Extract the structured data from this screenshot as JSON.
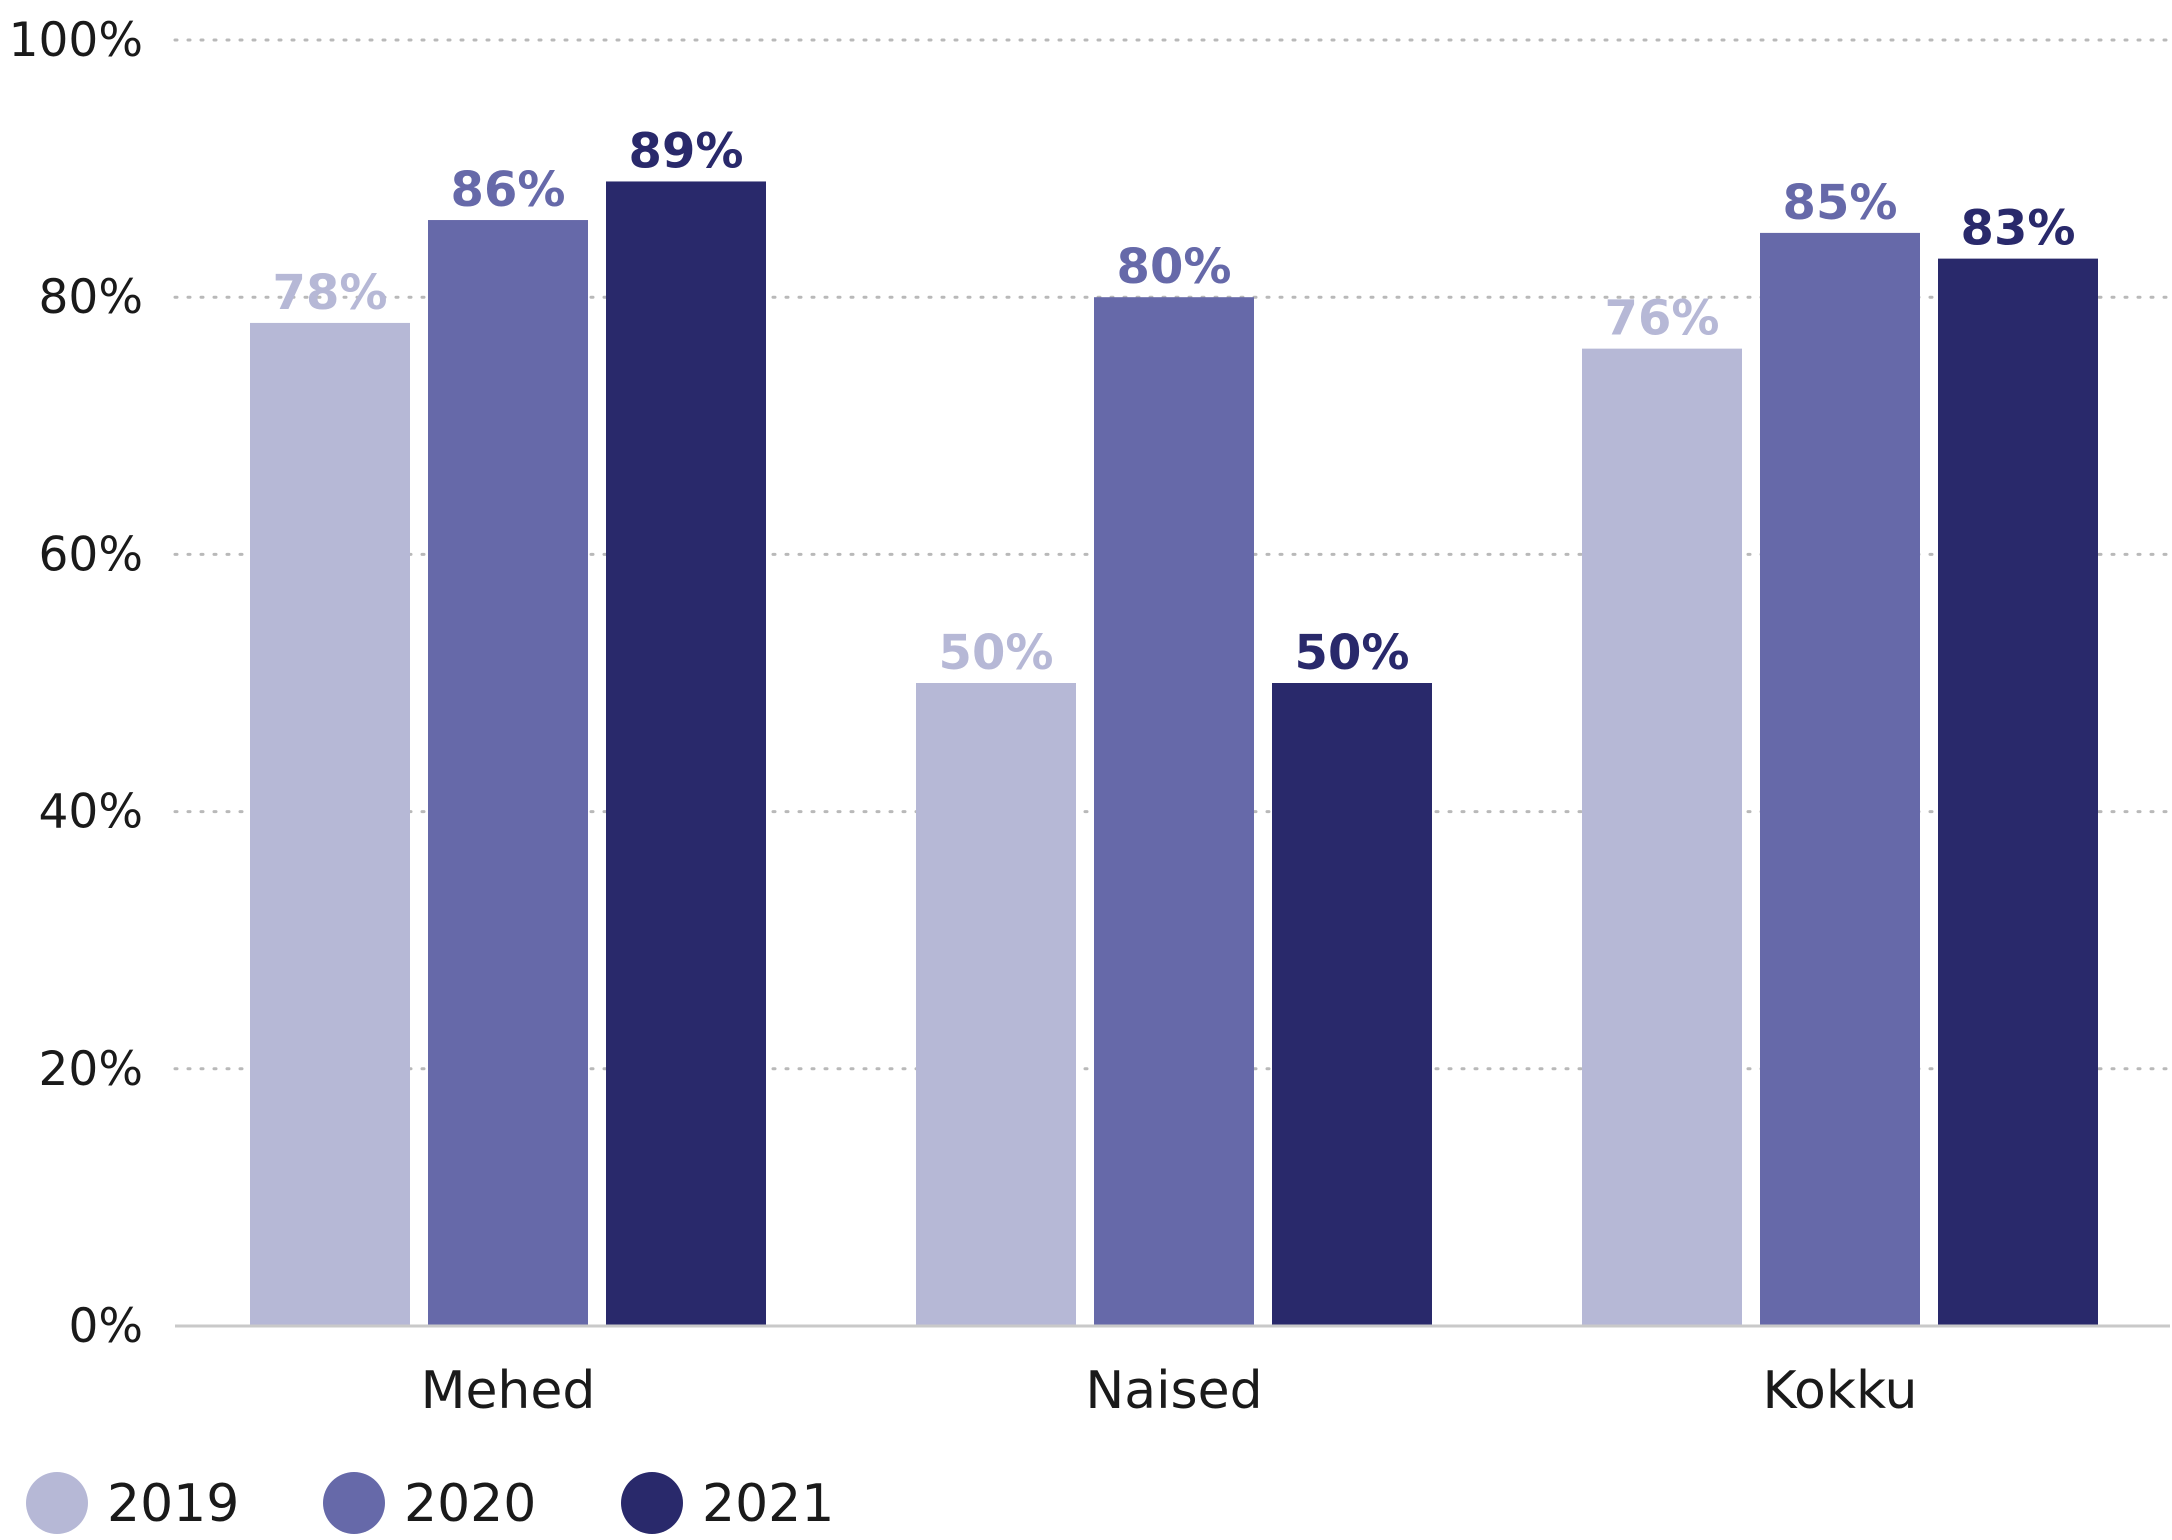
{
  "chart_data": {
    "type": "bar",
    "categories": [
      "Mehed",
      "Naised",
      "Kokku"
    ],
    "series": [
      {
        "name": "2019",
        "color": "#b6b8d6",
        "values": [
          78,
          50,
          76
        ]
      },
      {
        "name": "2020",
        "color": "#6669a9",
        "values": [
          86,
          80,
          85
        ]
      },
      {
        "name": "2021",
        "color": "#29296b",
        "values": [
          89,
          50,
          83
        ]
      }
    ],
    "value_suffix": "%",
    "ylim": [
      0,
      100
    ],
    "yticks": [
      0,
      20,
      40,
      60,
      80,
      100
    ],
    "ytick_labels": [
      "0%",
      "20%",
      "40%",
      "60%",
      "80%",
      "100%"
    ],
    "grid": true,
    "legend_position": "bottom-left",
    "title": "",
    "xlabel": "",
    "ylabel": ""
  }
}
